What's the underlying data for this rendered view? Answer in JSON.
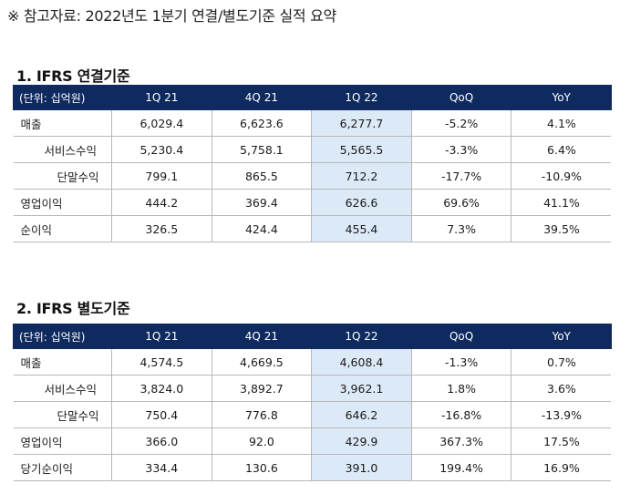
{
  "note": "※ 참고자료: 2022년도 1분기 연결/별도기준 실적 요약",
  "sections": [
    {
      "title": "1. IFRS 연결기준",
      "headers": [
        "(단위: 십억원)",
        "1Q 21",
        "4Q 21",
        "1Q 22",
        "QoQ",
        "YoY"
      ],
      "rows": [
        {
          "label": "매출",
          "values": [
            "6,029.4",
            "6,623.6",
            "6,277.7",
            "-5.2%",
            "4.1%"
          ]
        },
        {
          "label": "서비스수익",
          "values": [
            "5,230.4",
            "5,758.1",
            "5,565.5",
            "-3.3%",
            "6.4%"
          ]
        },
        {
          "label": "단말수익",
          "values": [
            "799.1",
            "865.5",
            "712.2",
            "-17.7%",
            "-10.9%"
          ]
        },
        {
          "label": "영업이익",
          "values": [
            "444.2",
            "369.4",
            "626.6",
            "69.6%",
            "41.1%"
          ]
        },
        {
          "label": "순이익",
          "values": [
            "326.5",
            "424.4",
            "455.4",
            "7.3%",
            "39.5%"
          ]
        }
      ]
    },
    {
      "title": "2. IFRS 별도기준",
      "headers": [
        "(단위: 십억원)",
        "1Q 21",
        "4Q 21",
        "1Q 22",
        "QoQ",
        "YoY"
      ],
      "rows": [
        {
          "label": "매출",
          "values": [
            "4,574.5",
            "4,669.5",
            "4,608.4",
            "-1.3%",
            "0.7%"
          ]
        },
        {
          "label": "서비스수익",
          "values": [
            "3,824.0",
            "3,892.7",
            "3,962.1",
            "1.8%",
            "3.6%"
          ]
        },
        {
          "label": "단말수익",
          "values": [
            "750.4",
            "776.8",
            "646.2",
            "-16.8%",
            "-13.9%"
          ]
        },
        {
          "label": "영업이익",
          "values": [
            "366.0",
            "92.0",
            "429.9",
            "367.3%",
            "17.5%"
          ]
        },
        {
          "label": "당기순이익",
          "values": [
            "334.4",
            "130.6",
            "391.0",
            "199.4%",
            "16.9%"
          ]
        }
      ]
    }
  ],
  "colors": {
    "header_bg": "#0f2a5f",
    "highlight_bg": "#dce9f7",
    "border": "#b8b8b8"
  }
}
